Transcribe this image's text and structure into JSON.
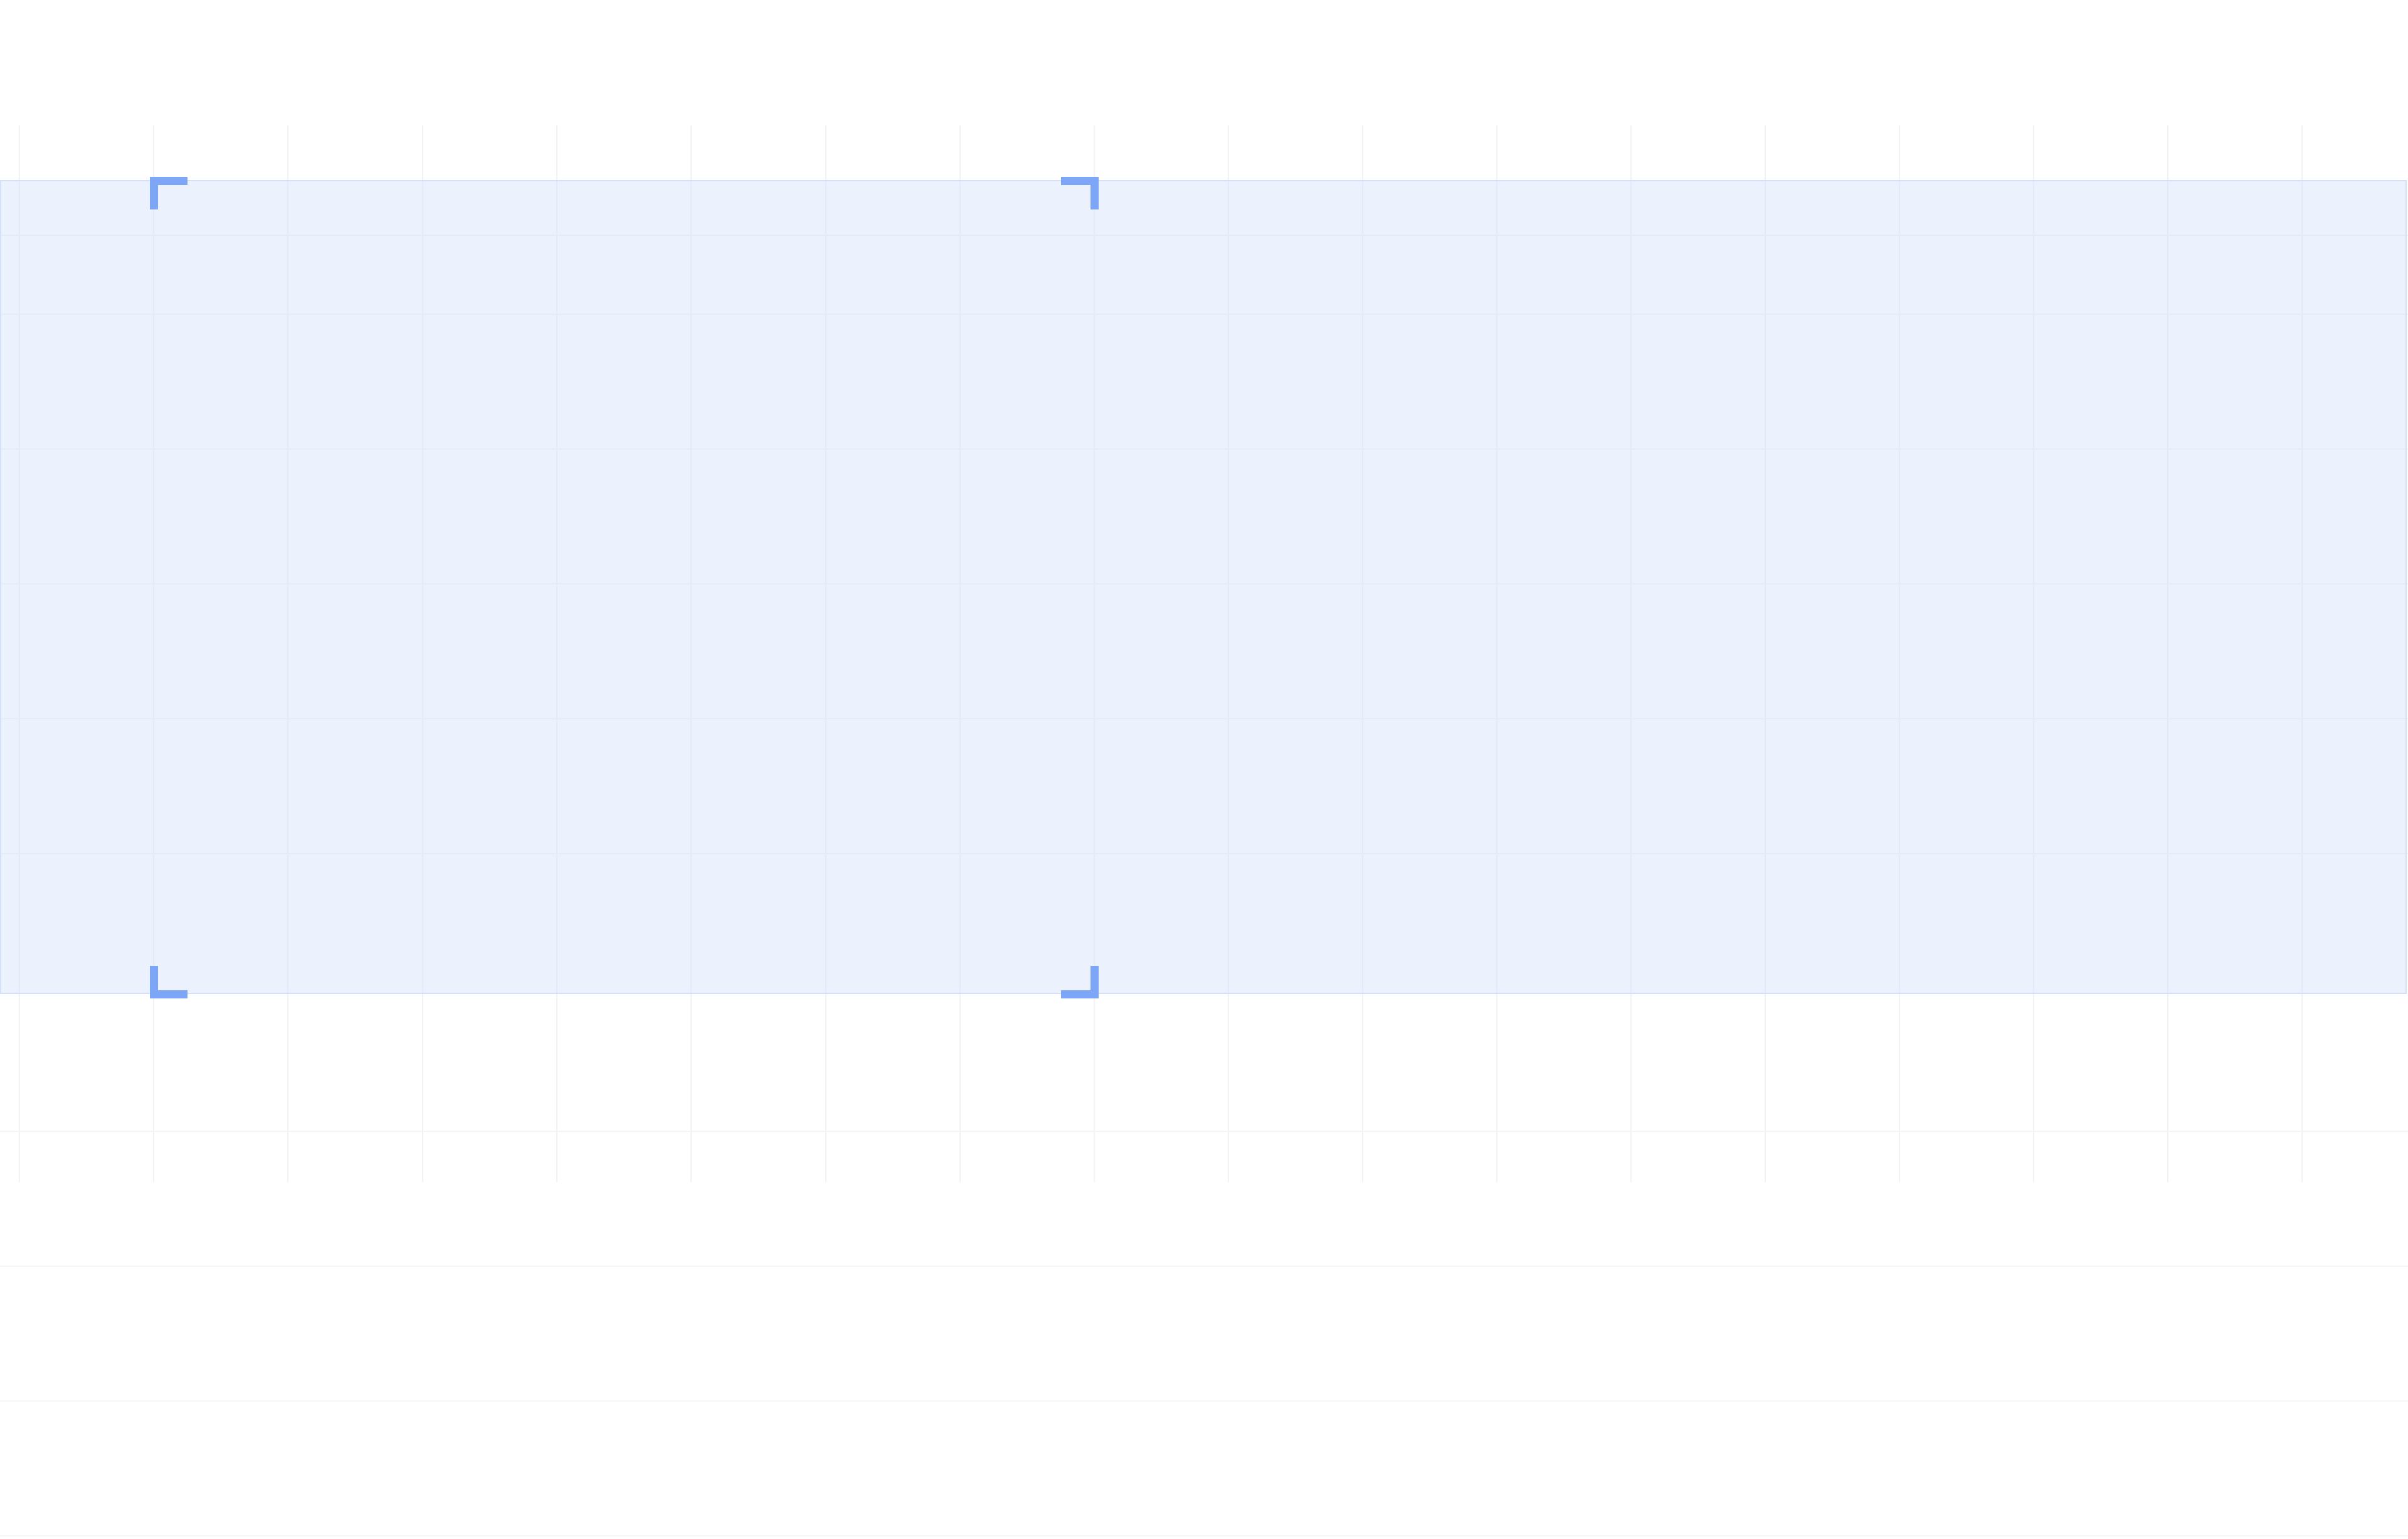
{
  "canvas": {
    "background": "#ffffff",
    "grid_color": "#f1f2f5"
  },
  "selection": {
    "fill_color": "#e4ecfb",
    "border_color": "#d4e0f8",
    "handle_color": "#7ea6f7",
    "handles": [
      "top-left",
      "top-right",
      "bottom-left",
      "bottom-right"
    ]
  }
}
